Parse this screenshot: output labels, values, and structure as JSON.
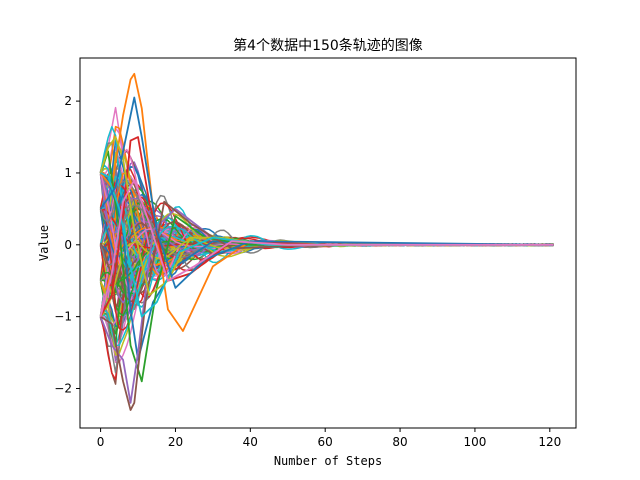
{
  "chart_data": {
    "type": "line",
    "title": "第4个数据中150条轨迹的图像",
    "xlabel": "Number of Steps",
    "ylabel": "Value",
    "xlim": [
      -5.5,
      127
    ],
    "ylim": [
      -2.55,
      2.6
    ],
    "xticks": [
      0,
      20,
      40,
      60,
      80,
      100,
      120
    ],
    "yticks": [
      -2,
      -1,
      0,
      1,
      2
    ],
    "grid": false,
    "legend": "none",
    "n_steps": 122,
    "series_count": 150,
    "palette": [
      "#1f77b4",
      "#ff7f0e",
      "#2ca02c",
      "#d62728",
      "#9467bd",
      "#8c564b",
      "#e377c2",
      "#7f7f7f",
      "#bcbd22",
      "#17becf"
    ],
    "series": [
      {
        "color": "#1f77b4",
        "x": [
          0,
          2,
          4,
          6,
          8,
          10,
          14,
          20,
          30,
          40,
          60,
          90,
          121
        ],
        "values": [
          1.0,
          0.9,
          0.6,
          0.2,
          -0.9,
          -1.6,
          -0.8,
          -0.3,
          0.05,
          0.02,
          0.0,
          0.0,
          0.0
        ]
      },
      {
        "color": "#ff7f0e",
        "x": [
          0,
          3,
          6,
          8,
          9,
          11,
          14,
          18,
          22,
          30,
          40,
          60,
          90,
          121
        ],
        "values": [
          1.0,
          0.8,
          1.8,
          2.3,
          2.38,
          1.9,
          0.5,
          -0.9,
          -1.2,
          -0.3,
          0.05,
          0.0,
          0.01,
          0.0
        ]
      },
      {
        "color": "#2ca02c",
        "x": [
          0,
          2,
          5,
          8,
          11,
          15,
          20,
          28,
          40,
          60,
          121
        ],
        "values": [
          1.0,
          1.3,
          0.2,
          -1.4,
          -1.9,
          -0.6,
          0.4,
          0.1,
          0.0,
          0.0,
          0.0
        ]
      },
      {
        "color": "#d62728",
        "x": [
          0,
          3,
          6,
          8,
          10,
          13,
          18,
          24,
          35,
          60,
          121
        ],
        "values": [
          -1.0,
          -0.7,
          0.4,
          1.45,
          1.5,
          0.6,
          -0.5,
          -0.4,
          0.05,
          0.0,
          0.0
        ]
      },
      {
        "color": "#9467bd",
        "x": [
          0,
          3,
          6,
          8,
          10,
          14,
          20,
          30,
          45,
          121
        ],
        "values": [
          -1.0,
          -1.4,
          -1.6,
          -2.2,
          -1.5,
          0.2,
          0.5,
          0.1,
          0.0,
          0.0
        ]
      },
      {
        "color": "#8c564b",
        "x": [
          0,
          3,
          6,
          8,
          9,
          12,
          17,
          24,
          35,
          60,
          121
        ],
        "values": [
          -1.0,
          -1.1,
          -1.9,
          -2.3,
          -2.2,
          -0.8,
          0.6,
          0.3,
          -0.05,
          0.0,
          0.0
        ]
      },
      {
        "color": "#bcbd22",
        "x": [
          0,
          2,
          4,
          6,
          9,
          13,
          18,
          24,
          32,
          45,
          121
        ],
        "values": [
          1.0,
          1.35,
          1.5,
          1.2,
          0.2,
          -0.7,
          -0.5,
          0.1,
          0.1,
          0.0,
          0.0
        ]
      },
      {
        "color": "#17becf",
        "x": [
          0,
          2,
          5,
          8,
          11,
          15,
          21,
          30,
          45,
          121
        ],
        "values": [
          1.0,
          0.95,
          0.5,
          -0.3,
          -1.0,
          -0.8,
          -0.1,
          0.1,
          0.0,
          0.0
        ]
      },
      {
        "color": "#1f77b4",
        "x": [
          0,
          4,
          8,
          9,
          11,
          15,
          20,
          28,
          40,
          121
        ],
        "values": [
          0.5,
          0.8,
          1.8,
          2.05,
          1.5,
          0.2,
          -0.6,
          -0.2,
          0.05,
          0.0
        ]
      },
      {
        "color": "#e377c2",
        "x": [
          0,
          3,
          6,
          9,
          13,
          18,
          25,
          35,
          50,
          121
        ],
        "values": [
          -1.0,
          -0.4,
          0.6,
          0.9,
          0.3,
          -0.5,
          -0.3,
          0.05,
          0.0,
          0.0
        ]
      }
    ]
  }
}
